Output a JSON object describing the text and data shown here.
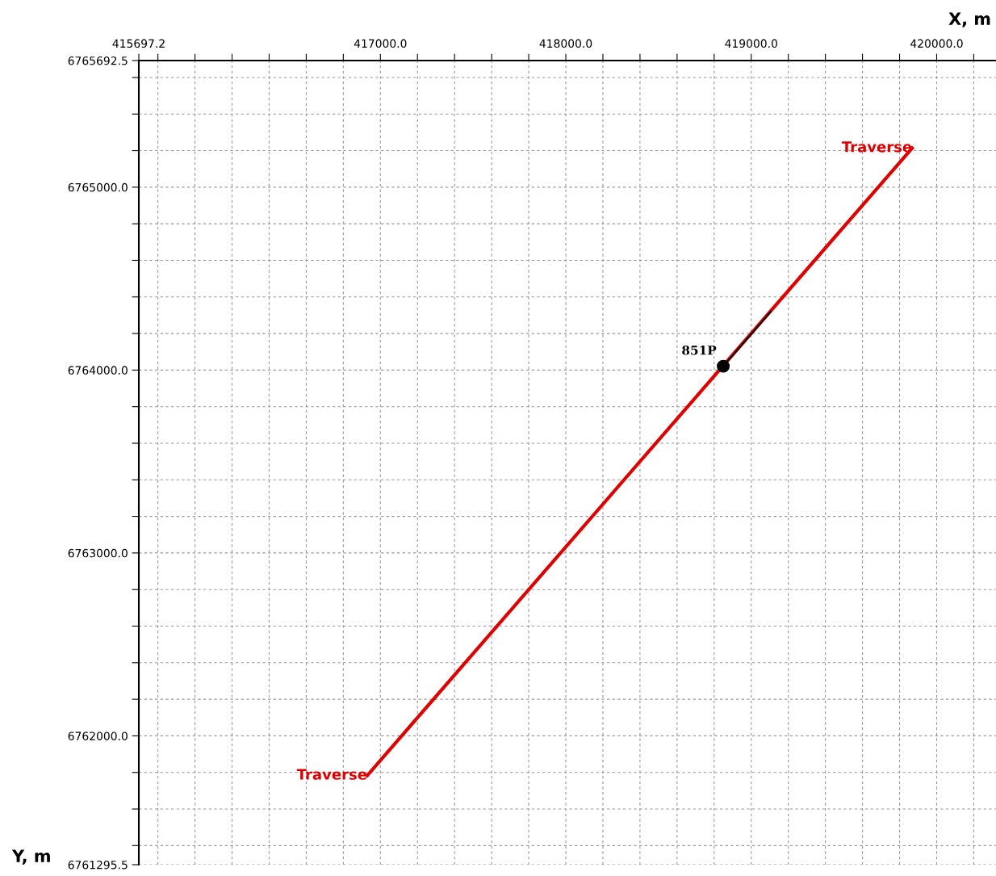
{
  "chart_data": {
    "type": "line",
    "xlabel": "X, m",
    "ylabel": "Y, m",
    "xlim": [
      415697.2,
      420320
    ],
    "ylim": [
      6761295.5,
      6765692.5
    ],
    "xticks": [
      415697.2,
      {
        "value": 415800,
        "label": null
      },
      {
        "value": 416000,
        "label": null
      },
      {
        "value": 416200,
        "label": null
      },
      {
        "value": 416400,
        "label": null
      },
      {
        "value": 416600,
        "label": null
      },
      {
        "value": 416800,
        "label": null
      },
      {
        "value": 417000,
        "label": "417000.0"
      },
      {
        "value": 417200,
        "label": null
      },
      {
        "value": 417400,
        "label": null
      },
      {
        "value": 417600,
        "label": null
      },
      {
        "value": 417800,
        "label": null
      },
      {
        "value": 418000,
        "label": "418000.0"
      },
      {
        "value": 418200,
        "label": null
      },
      {
        "value": 418400,
        "label": null
      },
      {
        "value": 418600,
        "label": null
      },
      {
        "value": 418800,
        "label": null
      },
      {
        "value": 419000,
        "label": "419000.0"
      },
      {
        "value": 419200,
        "label": null
      },
      {
        "value": 419400,
        "label": null
      },
      {
        "value": 419600,
        "label": null
      },
      {
        "value": 419800,
        "label": null
      },
      {
        "value": 420000,
        "label": "420000.0"
      },
      {
        "value": 420200,
        "label": null
      }
    ],
    "yticks": [
      6765692.5,
      {
        "value": 6765600,
        "label": null
      },
      {
        "value": 6765400,
        "label": null
      },
      {
        "value": 6765200,
        "label": null
      },
      {
        "value": 6765000,
        "label": "6765000.0"
      },
      {
        "value": 6764800,
        "label": null
      },
      {
        "value": 6764600,
        "label": null
      },
      {
        "value": 6764400,
        "label": null
      },
      {
        "value": 6764200,
        "label": null
      },
      {
        "value": 6764000,
        "label": "6764000.0"
      },
      {
        "value": 6763800,
        "label": null
      },
      {
        "value": 6763600,
        "label": null
      },
      {
        "value": 6763400,
        "label": null
      },
      {
        "value": 6763200,
        "label": null
      },
      {
        "value": 6763000,
        "label": "6763000.0"
      },
      {
        "value": 6762800,
        "label": null
      },
      {
        "value": 6762600,
        "label": null
      },
      {
        "value": 6762400,
        "label": null
      },
      {
        "value": 6762200,
        "label": null
      },
      {
        "value": 6762000,
        "label": "6762000.0"
      },
      {
        "value": 6761800,
        "label": null
      },
      {
        "value": 6761600,
        "label": null
      },
      {
        "value": 6761400,
        "label": null
      },
      6761295.5
    ],
    "grid": true,
    "series": [
      {
        "name": "Traverse",
        "color": "#e00000",
        "x": [
          416929,
          419868
        ],
        "values": [
          6761783,
          6765214
        ]
      },
      {
        "color": "#000000",
        "x": [
          418849,
          419106
        ],
        "values": [
          6764021,
          6764321
        ]
      },
      {
        "type": "scatter",
        "name": "851P",
        "color": "#000000",
        "marker": "circle",
        "x": [
          418849
        ],
        "values": [
          6764021
        ]
      }
    ]
  }
}
